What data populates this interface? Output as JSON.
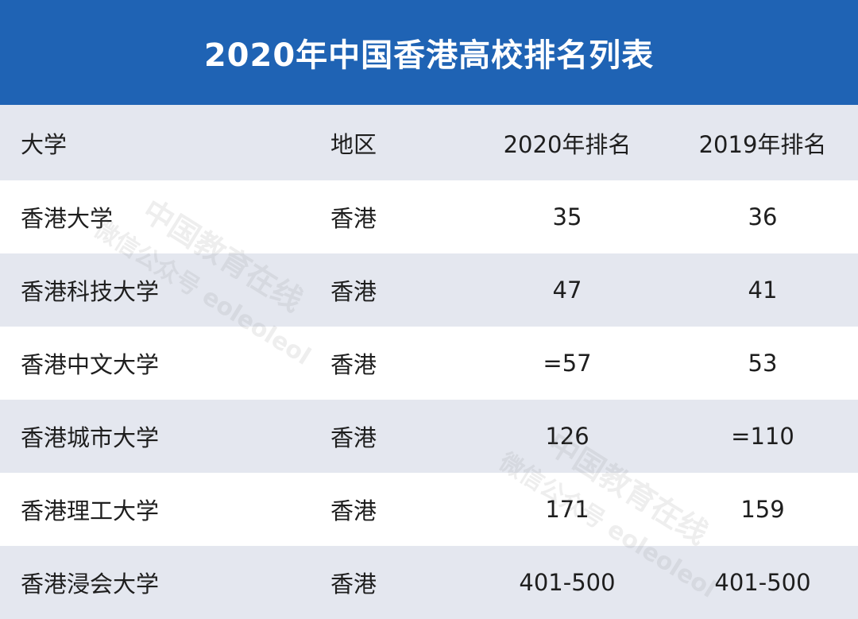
{
  "title": "2020年中国香港高校排名列表",
  "table": {
    "headers": {
      "university": "大学",
      "region": "地区",
      "rank_2020": "2020年排名",
      "rank_2019": "2019年排名"
    },
    "rows": [
      {
        "university": "香港大学",
        "region": "香港",
        "rank_2020": "35",
        "rank_2019": "36"
      },
      {
        "university": "香港科技大学",
        "region": "香港",
        "rank_2020": "47",
        "rank_2019": "41"
      },
      {
        "university": "香港中文大学",
        "region": "香港",
        "rank_2020": "=57",
        "rank_2019": "53"
      },
      {
        "university": "香港城市大学",
        "region": "香港",
        "rank_2020": "126",
        "rank_2019": "=110"
      },
      {
        "university": "香港理工大学",
        "region": "香港",
        "rank_2020": "171",
        "rank_2019": "159"
      },
      {
        "university": "香港浸会大学",
        "region": "香港",
        "rank_2020": "401-500",
        "rank_2019": "401-500"
      }
    ]
  },
  "colors": {
    "title_bar": "#1f63b4",
    "shaded_row": "#e4e7ef",
    "plain_row": "#ffffff"
  },
  "watermark": {
    "line1": "中国教育在线",
    "line2": "微信公众号 eoleoleol"
  }
}
